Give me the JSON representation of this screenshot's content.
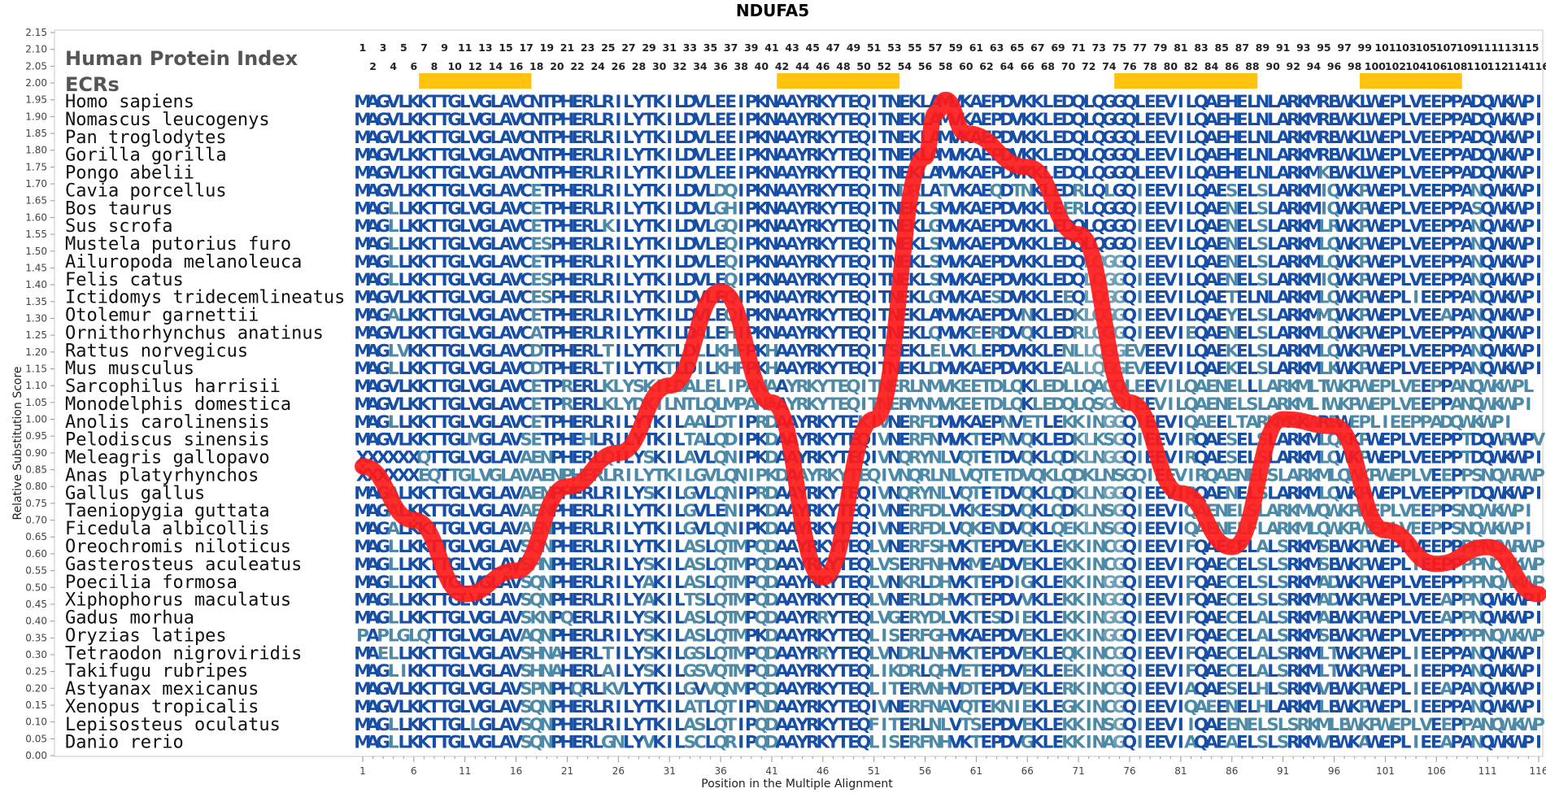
{
  "chart_data": {
    "type": "line",
    "title": "NDUFA5",
    "xlabel": "Position in the Multiple Alignment",
    "ylabel": "Relative Substitution Score",
    "xlim": [
      1,
      116
    ],
    "ylim": [
      0,
      2.15
    ],
    "y_ticks": [
      "0.00",
      "0.05",
      "0.10",
      "0.15",
      "0.20",
      "0.25",
      "0.30",
      "0.35",
      "0.40",
      "0.45",
      "0.50",
      "0.55",
      "0.60",
      "0.65",
      "0.70",
      "0.75",
      "0.80",
      "0.85",
      "0.90",
      "0.95",
      "1.00",
      "1.05",
      "1.10",
      "1.15",
      "1.20",
      "1.25",
      "1.30",
      "1.35",
      "1.40",
      "1.45",
      "1.50",
      "1.55",
      "1.60",
      "1.65",
      "1.70",
      "1.75",
      "1.80",
      "1.85",
      "1.90",
      "1.95",
      "2.00",
      "2.05",
      "2.10",
      "2.15"
    ],
    "x_ticks": [
      1,
      6,
      11,
      16,
      21,
      26,
      31,
      36,
      41,
      46,
      51,
      56,
      61,
      66,
      71,
      76,
      81,
      86,
      91,
      96,
      101,
      106,
      111,
      116
    ],
    "header_label": "Human Protein Index",
    "ecr_label": "ECRs",
    "human_index_odd": [
      "1",
      "3",
      "5",
      "7",
      "9",
      "11",
      "13",
      "15",
      "17",
      "19",
      "21",
      "23",
      "25",
      "27",
      "29",
      "31",
      "33",
      "35",
      "37",
      "39",
      "41",
      "43",
      "45",
      "47",
      "49",
      "51",
      "53",
      "55",
      "57",
      "59",
      "61",
      "63",
      "65",
      "67",
      "69",
      "71",
      "73",
      "75",
      "77",
      "79",
      "81",
      "83",
      "85",
      "87",
      "89",
      "91",
      "93",
      "95",
      "97",
      "99",
      "101",
      "103",
      "105",
      "107",
      "109",
      "111",
      "113",
      "115"
    ],
    "human_index_even": [
      "2",
      "4",
      "6",
      "8",
      "10",
      "12",
      "14",
      "16",
      "18",
      "20",
      "22",
      "24",
      "26",
      "28",
      "30",
      "32",
      "34",
      "36",
      "38",
      "40",
      "42",
      "44",
      "46",
      "48",
      "50",
      "52",
      "54",
      "56",
      "58",
      "60",
      "62",
      "64",
      "66",
      "68",
      "70",
      "72",
      "74",
      "76",
      "78",
      "80",
      "82",
      "84",
      "86",
      "88",
      "90",
      "92",
      "94",
      "96",
      "98",
      "100",
      "102",
      "104",
      "106",
      "108",
      "110",
      "112",
      "114",
      "116"
    ],
    "ecr_regions": [
      [
        7,
        17
      ],
      [
        42,
        53
      ],
      [
        75,
        88
      ],
      [
        99,
        108
      ]
    ],
    "sequences": [
      {
        "species": "Homo sapiens",
        "seq": "MAGVLKKTTGLVGLAVCNTPHERLRILYTKILDVLEEIPKNAAYRKYTEQITNEKLAMVKAEPDVKKLEDQLQGGQLEEVILQAEHELNLARKMREWKLWEPLVEEPPADQWKWPI"
      },
      {
        "species": "Nomascus leucogenys",
        "seq": "MAGVLKKTTGLVGLAVCNTPHERLRILYTKILDVLEEIPKNAAYRKYTEQITNEKLAMVKAEPDVKKLEDQLQGGQLEEVILQAEHELNLARKMREWKLWEPLVEEPPADQWKWPI"
      },
      {
        "species": "Pan troglodytes",
        "seq": "MAGVLKKTTGLVGLAVCNTPHERLRILYTKILDVLEEIPKNAAYRKYTEQITNEKLAMVKAEPDVKKLEDQLQGGQLEEVILQAEHELNLARKMREWKLWEPLVEEPPADQWKWPI"
      },
      {
        "species": "Gorilla gorilla",
        "seq": "MAGVLKKTTGLVGLAVCNTPHERLRILYTKILDVLEEIPKNAAYRKYTEQITNEKLAMVKAEPDVKKLEDQLQGGQLEEVILQAEHELNLARKMREWKLWEPLVEEPPADQWKWPI"
      },
      {
        "species": "Pongo abelii",
        "seq": "MAGVLKKTTGLVGLAVCNTPHERLRILYTKILDVLEEIPKNAAYRKYTEQITNEKLAMVKAEPDVKKLEDQLQGGQLEEVILQAEHELNLARKMKEWKLWEPLVEEPPADQWKWPI"
      },
      {
        "species": "Cavia porcellus",
        "seq": "MAGVLKKTTGLVGLAVCETPHERLRILYTKILDVLDQIPKNAAYRKYTEQITNDRLATVKAEQDTNKLEDRLQLGQIEEVILQAESELSLARKMIQWKPWEPLVEEPPANQWKWPI"
      },
      {
        "species": "Bos taurus",
        "seq": "MAGLLKKTTGLVGLAVCETPHERLRILYTKILDVLGHIPKNAAYRKYTEQITNEKLSMVKAEPDVKKLEERLQGGQIEEVILQAENELSLARKMIQWKPWEPLVEEPPASQWKWPI"
      },
      {
        "species": "Sus scrofa",
        "seq": "MAGLLKKTTGLVGLAVCETPHERLKILYTKILDVLGQIPKNAAYRKYTEQITNEKLGMVKAEPDVKKLEDQLQGGQIEEVILQAENELSLARKMLRWKPWEPLVEEPPANQWKWPI"
      },
      {
        "species": "Mustela putorius furo",
        "seq": "MAGLLKKTTGLVGLAVCESPHERLRILYTKILDVLEQIPKNAAYRKYTEQITNEKLSMVKAEPDVKKLEDQLQGGQIEEVILQAENELSLARKMLQWKPWEPLVEEPPANQWKWPI"
      },
      {
        "species": "Ailuropoda melanoleuca",
        "seq": "MAGLLKKTTGLVGLAVCETPHERLRILYTKILDVLEQIPKNAAYRKYTEQITNEKLSMVKAEPDVKKLEDQLQGGQIEEVILQAENELSLARKMLQWKPWEPLVEEPPANQWKWPI"
      },
      {
        "species": "Felis catus",
        "seq": "MAGLLKKTTGLVGLAVCESPHERLRILYTKILDVLEQIPKNAAYRKYTEQITNEKLSMVKAEPDVKKLEDQLQGGQIEEVILQAENELSLARKMIQWKPWEPLVEEPPANQWKWPI"
      },
      {
        "species": "Ictidomys tridecemlineatus",
        "seq": "MAGVLKKTTGLVGLAVCESPHERLRILYTKILDVLEQIPKNAAYRKYTEQITNEKLGMVKAESDVKKLEEQLQGGQIEEVILQAETELNLARKMLQWKPWEPLIEEPPANQWKWPI"
      },
      {
        "species": "Otolemur garnettii",
        "seq": "MAGALKKTTGLVGLAVCETPHERLRILYTKILDVLEQIPKNAAYRKYTEQITNEKLAMVKAEPDVNKLEDKLQGGQIEEVILQAEYELSLARKMMQWKPWEPLVEEAPANQWKWPI"
      },
      {
        "species": "Ornithorhynchus anatinus",
        "seq": "MAGVLKKTTGLVGLAVCATPHERLRILYTKILDALEHIPKNAAYRKYTEQITNEKLQMVKEERDVQKLEDRLQGGQIEEVIEQAENELSLARKMLQWKPWEPLVEEPPANQWKWPI"
      },
      {
        "species": "Rattus norvegicus",
        "seq": "MAGLVKKTTGLVGLAVCDTPHERLTILYTKTLDLLKHFPKHAAYRKYTEQITSEKLELVKLEPDVKKLENLLQGGEVEEVILQAEKELSLARKMLQWKPWEPLVEEPPANQWKWPI"
      },
      {
        "species": "Mus musculus",
        "seq": "MAGLLKKTTGLVGLAVCDTPHERLTILYTKTLDILKHFPKHAAYRKYTEQITNEKLDMVKAEPDVKKLEALLQGGEVEEVILQAEKELSLARKMLKWKPWEPLVEEPPANQWKWPI"
      },
      {
        "species": "Sarcophilus harrisii",
        "seq": "MAGVLKKTTGLVGLAVCETPRERLKLYSKILDALELIPANAAYRKYTEQITNERLNMVKEETDLQKLEDLLQAGQLEEVILQAENELLLARKMLTWKPWEPLVEEPPANQWKWPL"
      },
      {
        "species": "Monodelphis domestica",
        "seq": "MAGVLKKTTGLVGLAVCETPRERLKLYDKILNTLQLMPANAAYRKYTEQITNERMNMVKEETDLQKLEDQLQSGQIEEVILQAENELSLARKMLIWKPWEPLVEEPPANQWKWPI"
      },
      {
        "species": "Anolis carolinensis",
        "seq": "MAGLLKKTTGLVGLAVCETPHERLRILYTKILAALDTIPRDAAYRKYTEKIVNERFDMVKAEPNVETLEKKINGGQIEEVIQAEELTARKMAKWRPWEPLIEEPPADQWKWPI"
      },
      {
        "species": "Pelodiscus sinensis",
        "seq": "MAGVLKKTTGLMGLAVSETPHEHLRILYTKILTALQDIPKDAAYRKYTEQIVNERFNMVKTEPNVQKLEDKLKSGQIEEVIRQAESELSLARKMLQKKPWEPLVEEPPTDQWRWPV"
      },
      {
        "species": "Meleagris gallopavo",
        "seq": "XXXXXXQTTGLVGLAVAENPHERLQILYSKILAVLQNIPKDAAYRKYTEQIVNQRYNLVQTETDVQKLQDKLNGGQIEEVIRQAESELSLARKMLQWKPWEPLVEEPPTDQWKWPI"
      },
      {
        "species": "Anas platyrhynchos",
        "seq": "XXXXXXEQTTGLVGLAVAENPHERLRILYTKILGVLQNIPKDAAYRKYTEQIVNQRLNLVQTETDVQKLQDKLNSGQIEEVIRQAENELSLARKMLQWKPWEPLVEEPPSNQWRWPI"
      },
      {
        "species": "Gallus gallus",
        "seq": "MAGALKKTTGLVGLAVAENPHERLRILYSKILGVLQNIPRDAAYRKYTEQIVNQRYNLVQTETDVQKLQDKLNGGQIEEVIRQAENELSLARKMLQWKPWEPLVEEPPTDQWKWPI"
      },
      {
        "species": "Taeniopygia guttata",
        "seq": "MAGALKKTTGLVGLAVAENPHERLRILYTKILGVLENIPKDAAYRKYTEQIVNERFDLVKKESDVQKLQDKLNSGQIEEVIQAENELSLARKMVQWKPWEPLVEEPPSNQWKWPI"
      },
      {
        "species": "Ficedula albicollis",
        "seq": "MAGALKKTTGLVGLAVAENPHERLRILYTKILGVLQNIPKDAAYRKYTEQIVNERFDLVQKENDVQKLQEKLNSGQIEEVIQAENELFLARKMLQWKPWEPLVEEPPSNQWKWPI"
      },
      {
        "species": "Oreochromis niloticus",
        "seq": "MAGLLKKTTGLVGLAVSQNPHERLRILYTKILASLQTMPQDAAYRKYTEQLVNERFSHVKTEPDVEKLEKKINCGQIEEVIFQAECELALSRKMSEWKPWEPLVEEPPPPNQWRWPI"
      },
      {
        "species": "Gasterosteus aculeatus",
        "seq": "MAGLLKKTTGLVGLAVSHNPHERLRILYSKILASLQTMPQDAAYRKYTEQLVSERFNHVKMEADVEKLEKKINCGQIEEVIFQAECELSLSRKMSEWKPWEPLIEEPPPPNQWKWPI"
      },
      {
        "species": "Poecilia formosa",
        "seq": "MAGLLKKTTGLVGLAVSQNPHERLRILYAKILASLQTMPQDAAYRKYTEQLVNKRLDHVKTEPDIGKLEKKINGGQIEEVIFQAECELSLSRKMADWKPWEPLVEEPPPPNQWKWPI"
      },
      {
        "species": "Xiphophorus maculatus",
        "seq": "MAGLLKKTTGLVGLAVSQNPHERLRILYAKILTSLQTMPQDAAYRKYTEQLVNERLDHVKTEPDVVKLEKKINGGQIEEVIFQAECELSLSRKMADWKPWEPLVEEAPPNQWKWPI"
      },
      {
        "species": "Gadus morhua",
        "seq": "MAGLLKKTTGLVGLAVSKNPQERLRILYSKILASLQTMPQDAAYRRYTEQLVGERYDLVKTESDIEKLEKKINGGQIEEVIFQAECELALSRKMAEWKPWEPLVEEAPPNQWKWPI"
      },
      {
        "species": "Oryzias latipes",
        "seq": "PAPLGLQTTGLVGLAVAQNPHERLRILYSKILASLQTMPKDAAYRKYTEQLISERFGHVKAEPDVEKLEKKINGGQIEEVIFQAECELALSRKMSEWKPWEPLVEEPPPPNQWKWPI"
      },
      {
        "species": "Tetraodon nigroviridis",
        "seq": "MAELLKKTTGLVGLAVSHNAHERLTILYSKILGSLQTMPQDAAYRRYTEQLVNDRLNHVKTEPDVEKLEQKINCGQIEEVIFQAECELALSRKMLTWKPWEPLIEEPPANQWKWPI"
      },
      {
        "species": "Takifugu rubripes",
        "seq": "MAGLIKKTTGLVGLAVSHNAHERLAILYSKILGSVQTMPQDAAYRKYTEQLIKDRLQHVETEPDVEKLEEKINCGQIEEVIFQAECELALSRKMLTWKPWEPLIEEPPANQWKWPI"
      },
      {
        "species": "Astyanax mexicanus",
        "seq": "MAGVLKKTTGLVGLAVSPNPHQRLKVLYTKILGVVQNMPQDAAYRKYTEQLITERVNHVDTEPDVEKLERKINCGQIEEVIAQAESELHLSRKMVEWKPWEPLIEEAPANQWKWPI"
      },
      {
        "species": "Xenopus tropicalis",
        "seq": "MAGVLKKTTGLVGLAVSQNPHERLRILYTKILATLQTIPNDAAYRKYTEQIVNERFNAVQTEKNIEKLEGKINCGQIEEVIQAEENELHLARKMLEWKPWEPLIEEPPANQWKWPI"
      },
      {
        "species": "Lepisosteus oculatus",
        "seq": "MAGLLKKTTGLLGLAVSQNPHERLRILYTKILASLQTIPQDAAYRKYTEQFITERLNLVTSEPDVEKLEKKINSGQIEEVIIQAEENELSLSRKMLEWKPWEPLVEEPPANQWKWPI"
      },
      {
        "species": "Danio rerio",
        "seq": "MAGLLKKTTGLVGLAVSQNPHERLGNLYVKILSCLQRIPQDAAYRKYTEQLISERFNHVKTEPDVGKLEKKINAGQIEEVIAQAEAELSLSRKMVEWKAWEPLIEEAPANQWKWPI"
      }
    ],
    "series": [
      {
        "x": [
          1,
          6,
          11,
          16,
          21,
          26,
          31,
          36,
          41,
          46,
          51,
          56,
          57,
          58,
          60,
          66,
          71,
          76,
          81,
          86,
          91,
          96,
          101,
          106,
          111,
          116
        ],
        "values": [
          0.86,
          0.7,
          0.48,
          0.55,
          0.8,
          0.9,
          1.1,
          1.38,
          1.05,
          0.53,
          1.0,
          1.78,
          1.91,
          1.95,
          1.85,
          1.75,
          1.55,
          1.05,
          0.78,
          0.62,
          1.0,
          0.98,
          0.67,
          0.57,
          0.62,
          0.48
        ]
      }
    ]
  }
}
